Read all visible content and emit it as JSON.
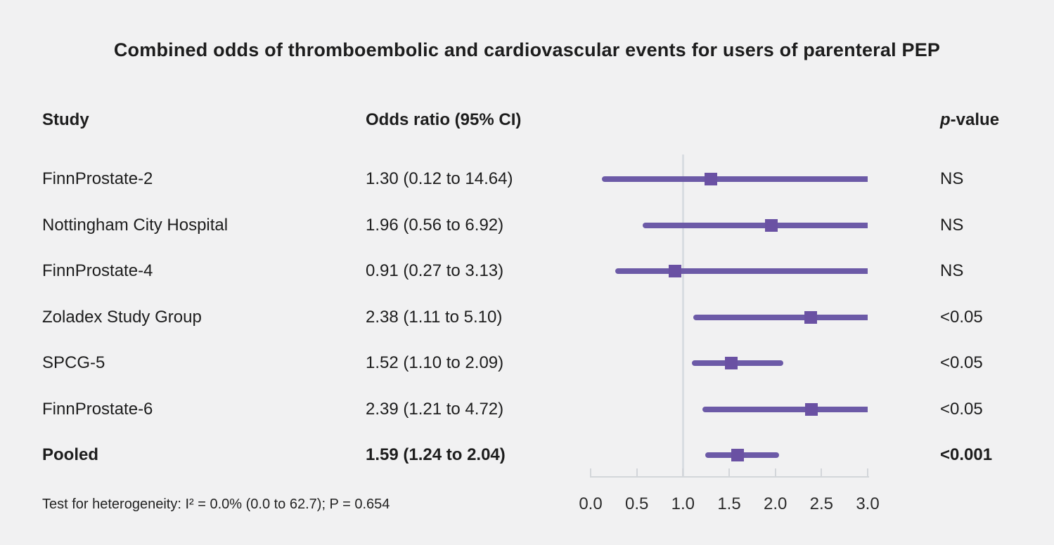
{
  "title": "Combined odds of thromboembolic and cardiovascular events for users of parenteral PEP",
  "columns": {
    "study": "Study",
    "odds_ratio": "Odds ratio (95% CI)",
    "p_italic": "p",
    "p_rest": "-value"
  },
  "footnote": "Test for heterogeneity: I² = 0.0% (0.0 to 62.7); P = 0.654",
  "chart_data": {
    "type": "forest",
    "xlabel": "Odds ratio",
    "x_axis": {
      "ticks": [
        0.0,
        0.5,
        1.0,
        1.5,
        2.0,
        2.5,
        3.0
      ],
      "tick_labels": [
        "0.0",
        "0.5",
        "1.0",
        "1.5",
        "2.0",
        "2.5",
        "3.0"
      ],
      "xlim": [
        0,
        3
      ],
      "reference_line": 1.0
    },
    "rows": [
      {
        "study": "FinnProstate-2",
        "or_label": "1.30 (0.12 to 14.64)",
        "or": 1.3,
        "ci_low": 0.12,
        "ci_high": 14.64,
        "p": "NS",
        "bold": false
      },
      {
        "study": "Nottingham City Hospital",
        "or_label": "1.96 (0.56 to 6.92)",
        "or": 1.96,
        "ci_low": 0.56,
        "ci_high": 6.92,
        "p": "NS",
        "bold": false
      },
      {
        "study": "FinnProstate-4",
        "or_label": "0.91 (0.27 to 3.13)",
        "or": 0.91,
        "ci_low": 0.27,
        "ci_high": 3.13,
        "p": "NS",
        "bold": false
      },
      {
        "study": "Zoladex Study Group",
        "or_label": "2.38 (1.11 to 5.10)",
        "or": 2.38,
        "ci_low": 1.11,
        "ci_high": 5.1,
        "p": "<0.05",
        "bold": false
      },
      {
        "study": "SPCG-5",
        "or_label": "1.52 (1.10 to 2.09)",
        "or": 1.52,
        "ci_low": 1.1,
        "ci_high": 2.09,
        "p": "<0.05",
        "bold": false
      },
      {
        "study": "FinnProstate-6",
        "or_label": "2.39 (1.21 to 4.72)",
        "or": 2.39,
        "ci_low": 1.21,
        "ci_high": 4.72,
        "p": "<0.05",
        "bold": false
      },
      {
        "study": "Pooled",
        "or_label": "1.59 (1.24 to 2.04)",
        "or": 1.59,
        "ci_low": 1.24,
        "ci_high": 2.04,
        "p": "<0.001",
        "bold": true
      }
    ],
    "colors": {
      "ci_line": "#6C5AA7",
      "marker": "#6A51A3",
      "reference_line": "#D9DDE2",
      "axis": "#D3D6DA"
    }
  }
}
